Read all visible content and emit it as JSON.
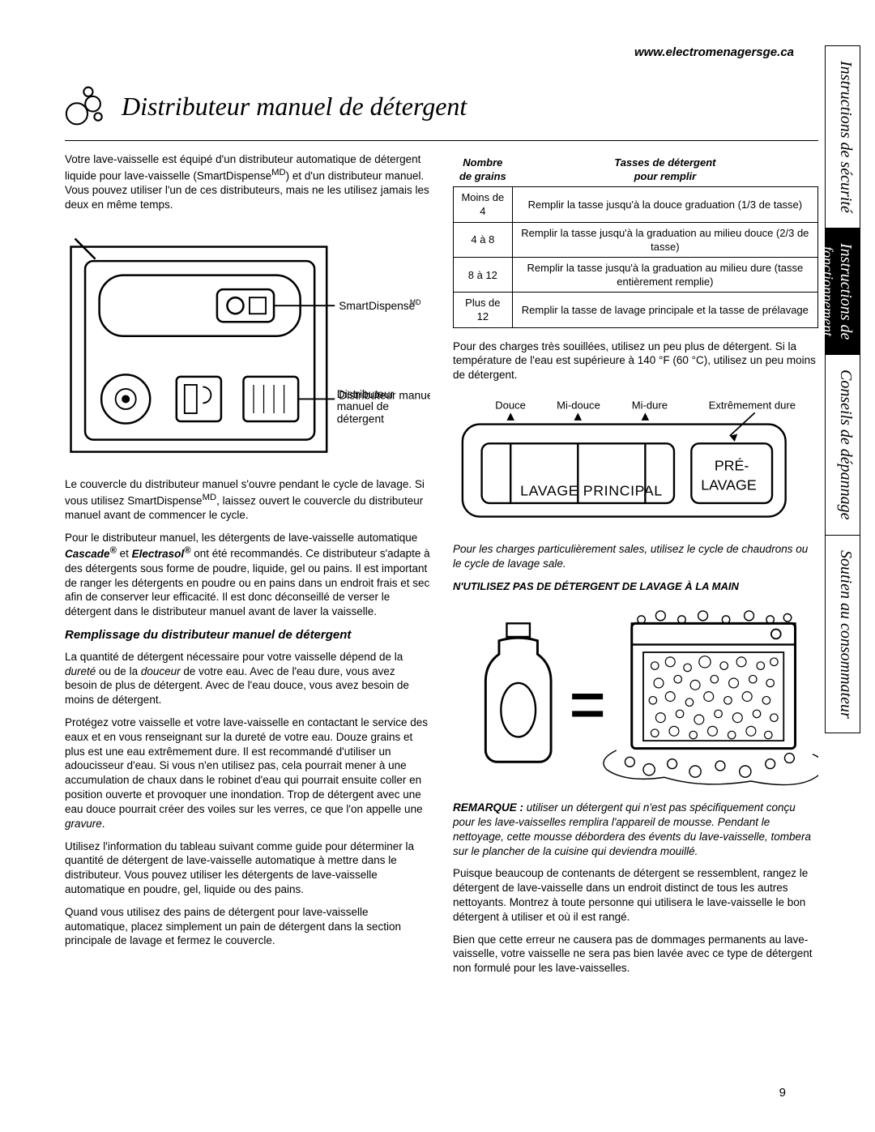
{
  "url": "www.electromenagersge.ca",
  "title": "Distributeur manuel de détergent",
  "page_number": "9",
  "intro_html": "Votre lave-vaisselle est équipé d'un distributeur automatique de détergent liquide pour lave-vaisselle (SmartDispense<sup>MD</sup>) et d'un distributeur manuel. Vous pouvez utiliser l'un de ces distributeurs, mais ne les utilisez jamais les deux en même temps.",
  "door_labels": {
    "smart": "SmartDispense",
    "smart_sup": "MD",
    "manual": "Distributeur manuel de détergent"
  },
  "p_cover_html": "Le couvercle du distributeur manuel s'ouvre pendant le cycle de lavage. Si vous utilisez SmartDispense<sup>MD</sup>, laissez ouvert le couvercle du distributeur manuel avant de commencer le cycle.",
  "p_brands_html": "Pour le distributeur manuel, les détergents de lave-vaisselle automatique <b><i>Cascade<sup>®</sup></i></b> et <b><i>Electrasol<sup>®</sup></i></b> ont été recommandés. Ce distributeur s'adapte à des détergents sous forme de poudre, liquide, gel ou pains. Il est important de ranger les détergents en poudre ou en pains dans un endroit frais et sec afin de conserver leur efficacité. Il est donc déconseillé de verser le détergent dans le distributeur manuel avant de laver la vaisselle.",
  "h2_fill": "Remplissage du distributeur manuel de détergent",
  "p_quantity_html": "La quantité de détergent nécessaire pour votre vaisselle dépend de la <i>dureté</i> ou de la <i>douceur</i> de votre eau. Avec de l'eau dure, vous avez besoin de plus de détergent. Avec de l'eau douce, vous avez besoin de moins de détergent.",
  "p_protect": "Protégez votre vaisselle et votre lave-vaisselle en contactant le service des eaux et en vous renseignant sur la dureté de votre eau. Douze grains et plus est une eau extrêmement dure. Il est recommandé d'utiliser un adoucisseur d'eau. Si vous n'en utilisez pas, cela pourrait mener à une accumulation de chaux dans le robinet d'eau qui pourrait ensuite coller en position ouverte et provoquer une inondation. Trop de détergent avec une eau douce pourrait créer des voiles sur les verres, ce que l'on appelle une ",
  "p_protect_em": "gravure",
  "p_table_intro": "Utilisez l'information du tableau suivant comme guide pour déterminer la quantité de détergent de lave-vaisselle automatique à mettre dans le distributeur. Vous pouvez utiliser les détergents de lave-vaisselle automatique en poudre, gel, liquide ou des pains.",
  "p_pains": "Quand vous utilisez des pains de détergent pour lave-vaisselle automatique, placez simplement un pain de détergent dans la section principale de lavage et fermez le couvercle.",
  "table": {
    "head_left_html": "Nombre<br>de grains",
    "head_right_html": "Tasses de détergent<br>pour remplir",
    "rows": [
      {
        "g": "Moins de 4",
        "t": "Remplir la tasse jusqu'à la douce graduation (1/3 de tasse)"
      },
      {
        "g": "4 à 8",
        "t": "Remplir la tasse jusqu'à la graduation au milieu douce (2/3 de tasse)"
      },
      {
        "g": "8 à 12",
        "t": "Remplir la tasse jusqu'à la graduation au milieu dure (tasse entièrement remplie)"
      },
      {
        "g": "Plus de 12",
        "t": "Remplir la tasse de lavage principale et la tasse de prélavage"
      }
    ]
  },
  "p_heavy": "Pour des charges très souillées, utilisez un peu plus de détergent. Si la température de l'eau est supérieure à 140 °F (60 °C), utilisez un peu moins de détergent.",
  "slider": {
    "l1": "Douce",
    "l2": "Mi-douce",
    "l3": "Mi-dure",
    "l4": "Extrêmement dure",
    "main": "LAVAGE PRINCIPAL",
    "pre1": "PRÉ-",
    "pre2": "LAVAGE"
  },
  "p_cycle_note": "Pour les charges particulièrement sales, utilisez le cycle de chaudrons ou le cycle de lavage sale.",
  "warn": "N'UTILISEZ PAS DE DÉTERGENT DE LAVAGE À LA MAIN",
  "remark_html": "<b><i>REMARQUE :</i></b> <i>utiliser un détergent qui n'est pas spécifiquement conçu pour les lave-vaisselles remplira l'appareil de mousse. Pendant le nettoyage, cette mousse débordera des évents du lave-vaisselle, tombera sur le plancher de la cuisine qui deviendra mouillé.</i>",
  "p_storage": "Puisque beaucoup de contenants de détergent se ressemblent, rangez le détergent de lave-vaisselle dans un endroit distinct de tous les autres nettoyants. Montrez à toute personne qui utilisera le lave-vaisselle le bon détergent à utiliser et où il est rangé.",
  "p_final": "Bien que cette erreur ne causera pas de dommages permanents au lave-vaisselle, votre vaisselle ne sera pas bien lavée avec ce type de détergent non formulé pour les lave-vaisselles.",
  "tabs": {
    "t1": "Instructions de sécurité",
    "t2a": "Instructions de",
    "t2b": "fonctionnement",
    "t3": "Conseils de dépannage",
    "t4": "Soutien au consommateur"
  },
  "colors": {
    "text": "#000000",
    "bg": "#ffffff",
    "tab_active_bg": "#000000",
    "tab_active_fg": "#ffffff"
  }
}
